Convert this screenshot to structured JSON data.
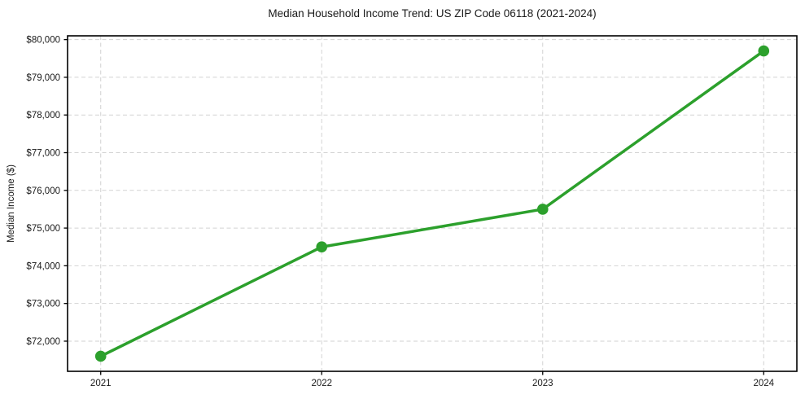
{
  "chart_data": {
    "type": "line",
    "title": "Median Household Income Trend: US ZIP Code 06118 (2021-2024)",
    "xlabel": "",
    "ylabel": "Median Income ($)",
    "categories": [
      2021,
      2022,
      2023,
      2024
    ],
    "series": [
      {
        "name": "Median Household Income",
        "values": [
          71600,
          74500,
          75500,
          79700
        ]
      }
    ],
    "xtick_labels": [
      "2021",
      "2022",
      "2023",
      "2024"
    ],
    "ytick_values": [
      72000,
      73000,
      74000,
      75000,
      76000,
      77000,
      78000,
      79000,
      80000
    ],
    "ytick_labels": [
      "$72,000",
      "$73,000",
      "$74,000",
      "$75,000",
      "$76,000",
      "$77,000",
      "$78,000",
      "$79,000",
      "$80,000"
    ],
    "xlim": [
      2020.85,
      2024.15
    ],
    "ylim": [
      71200,
      80100
    ],
    "grid": true,
    "grid_style": "dashed",
    "legend": "none",
    "colors": {
      "line": "#2ca02c",
      "marker": "#2ca02c",
      "grid": "#d2d2d2",
      "frame": "#000000",
      "text": "#1a1a1a",
      "background": "#ffffff"
    }
  }
}
